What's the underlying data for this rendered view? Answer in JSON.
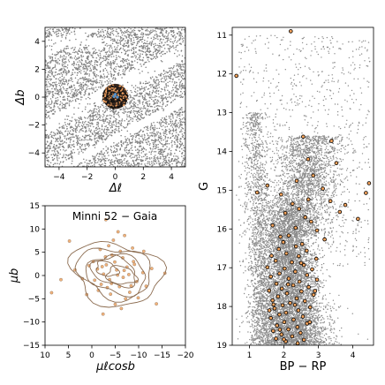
{
  "chart_data": [
    {
      "type": "scatter",
      "xlabel": "Δℓ",
      "ylabel": "Δb",
      "xlim": [
        -5,
        5
      ],
      "ylim": [
        -5,
        5
      ],
      "xticks": [
        -4,
        -2,
        0,
        2,
        4
      ],
      "yticks": [
        -4,
        -2,
        0,
        2,
        4
      ],
      "xtick_labels": [
        "−4",
        "−2",
        "0",
        "2",
        "4"
      ],
      "ytick_labels": [
        "−4",
        "−2",
        "0",
        "2",
        "4"
      ],
      "series": [
        {
          "role": "field",
          "color": "#808080",
          "description_shape": "dense uniform field of stars with diagonal gaps"
        },
        {
          "role": "members",
          "color": "#1a1a1a",
          "center": [
            0,
            0.05
          ],
          "radius": 0.9
        },
        {
          "role": "highlight",
          "color": "#4f8fcc",
          "points": [
            [
              0.0,
              0.2
            ],
            [
              0.15,
              0.0
            ],
            [
              -0.1,
              0.05
            ]
          ]
        }
      ]
    },
    {
      "type": "scatter",
      "title": "Minni 52  −  Gaia",
      "xlabel": "μℓcosb",
      "ylabel": "μb",
      "xlim": [
        10,
        -20
      ],
      "ylim": [
        -15,
        15
      ],
      "xticks": [
        10,
        5,
        0,
        -5,
        -10,
        -15,
        -20
      ],
      "yticks": [
        -15,
        -10,
        -5,
        0,
        5,
        10,
        15
      ],
      "xtick_labels": [
        "10",
        "5",
        "0",
        "−5",
        "−10",
        "−15",
        "−20"
      ],
      "ytick_labels": [
        "−15",
        "−10",
        "−5",
        "0",
        "5",
        "10",
        "15"
      ],
      "points": [
        [
          -5.3,
          1.2
        ],
        [
          -3.1,
          2.3
        ],
        [
          -8.9,
          3.0
        ],
        [
          -1.2,
          1.4
        ],
        [
          -6.7,
          -0.4
        ],
        [
          -4.3,
          4.4
        ],
        [
          -2.0,
          -1.9
        ],
        [
          -7.5,
          1.8
        ],
        [
          -5.9,
          -2.4
        ],
        [
          0.6,
          2.1
        ],
        [
          -3.8,
          -0.9
        ],
        [
          -9.6,
          -1.3
        ],
        [
          -4.9,
          2.9
        ],
        [
          -6.1,
          5.2
        ],
        [
          -2.5,
          0.3
        ],
        [
          -8.1,
          -3.6
        ],
        [
          -1.4,
          -3.2
        ],
        [
          -10.9,
          0.6
        ],
        [
          -3.6,
          6.4
        ],
        [
          -7.2,
          -5.0
        ],
        [
          -5.5,
          0.1
        ],
        [
          2.0,
          -0.7
        ],
        [
          -6.6,
          3.8
        ],
        [
          -4.0,
          -4.0
        ],
        [
          -9.1,
          2.4
        ],
        [
          -2.9,
          4.0
        ],
        [
          -11.6,
          -2.3
        ],
        [
          -0.6,
          -1.0
        ],
        [
          -5.0,
          -6.2
        ],
        [
          -7.9,
          0.2
        ],
        [
          -3.3,
          -2.6
        ],
        [
          -8.7,
          5.9
        ],
        [
          3.6,
          1.2
        ],
        [
          -12.8,
          1.5
        ],
        [
          -1.8,
          5.6
        ],
        [
          -6.3,
          -7.1
        ],
        [
          -4.6,
          7.6
        ],
        [
          -9.9,
          -4.8
        ],
        [
          1.1,
          -4.1
        ],
        [
          -7.0,
          8.6
        ],
        [
          4.8,
          7.4
        ],
        [
          -5.6,
          9.4
        ],
        [
          6.6,
          -0.9
        ],
        [
          -13.8,
          -6.1
        ],
        [
          -2.4,
          -8.3
        ],
        [
          8.6,
          -3.7
        ],
        [
          -15.6,
          0.5
        ],
        [
          -11.1,
          5.2
        ],
        [
          -3.0,
          12.0
        ],
        [
          -0.3,
          3.0
        ],
        [
          -6.9,
          1.1
        ],
        [
          -4.2,
          -1.7
        ],
        [
          -8.4,
          -2.2
        ],
        [
          -2.2,
          1.9
        ]
      ],
      "contours": [
        {
          "level": 1,
          "center": [
            -5.2,
            0.4
          ],
          "radii": [
            9.8,
            6.6
          ],
          "angle": 12
        },
        {
          "level": 2,
          "center": [
            -5.0,
            0.6
          ],
          "radii": [
            8.0,
            5.3
          ],
          "angle": 14
        },
        {
          "level": 3,
          "center": [
            -5.4,
            0.2
          ],
          "radii": [
            6.4,
            4.1
          ],
          "angle": 10
        },
        {
          "level": 4,
          "center": [
            -4.8,
            0.9
          ],
          "radii": [
            4.9,
            3.0
          ],
          "angle": 18
        },
        {
          "level": 5,
          "center": [
            -6.3,
            0.0
          ],
          "radii": [
            3.2,
            1.9
          ],
          "angle": 8
        },
        {
          "level": 6,
          "center": [
            -3.2,
            1.4
          ],
          "radii": [
            2.4,
            1.5
          ],
          "angle": 20
        }
      ],
      "point_color": "#f2b27a",
      "point_edge": "#8a7766",
      "contour_color": "#8b6b4f"
    },
    {
      "type": "scatter",
      "xlabel": "BP − RP",
      "ylabel": "G",
      "xlim": [
        0.5,
        4.6
      ],
      "ylim": [
        19,
        10.8
      ],
      "xticks": [
        1,
        2,
        3,
        4
      ],
      "yticks": [
        11,
        12,
        13,
        14,
        15,
        16,
        17,
        18,
        19
      ],
      "field_color": "#8c8c8c",
      "member_color": "#f6a45c",
      "member_edge": "#000000",
      "members": [
        [
          2.2,
          10.9
        ],
        [
          0.62,
          12.05
        ],
        [
          2.56,
          13.62
        ],
        [
          3.38,
          13.73
        ],
        [
          2.7,
          14.2
        ],
        [
          3.52,
          14.3
        ],
        [
          2.85,
          14.62
        ],
        [
          4.47,
          14.82
        ],
        [
          1.52,
          14.88
        ],
        [
          2.37,
          14.76
        ],
        [
          3.13,
          14.96
        ],
        [
          1.92,
          15.11
        ],
        [
          1.22,
          15.06
        ],
        [
          4.38,
          15.07
        ],
        [
          2.71,
          15.24
        ],
        [
          3.35,
          15.28
        ],
        [
          3.78,
          15.38
        ],
        [
          2.44,
          15.48
        ],
        [
          2.04,
          15.59
        ],
        [
          3.62,
          15.56
        ],
        [
          4.15,
          15.74
        ],
        [
          2.79,
          15.81
        ],
        [
          1.67,
          15.91
        ],
        [
          2.34,
          15.97
        ],
        [
          2.96,
          16.04
        ],
        [
          2.14,
          16.17
        ],
        [
          3.18,
          16.27
        ],
        [
          1.98,
          16.34
        ],
        [
          2.53,
          16.39
        ],
        [
          1.85,
          16.52
        ],
        [
          2.66,
          16.56
        ],
        [
          2.07,
          16.63
        ],
        [
          1.64,
          16.69
        ],
        [
          2.43,
          16.7
        ],
        [
          2.94,
          16.77
        ],
        [
          1.76,
          16.82
        ],
        [
          2.23,
          16.86
        ],
        [
          2.58,
          16.93
        ],
        [
          1.52,
          16.99
        ],
        [
          2.02,
          17.02
        ],
        [
          2.82,
          17.04
        ],
        [
          2.33,
          17.1
        ],
        [
          1.87,
          17.15
        ],
        [
          2.67,
          17.19
        ],
        [
          1.62,
          17.23
        ],
        [
          2.14,
          17.28
        ],
        [
          2.96,
          17.31
        ],
        [
          2.45,
          17.36
        ],
        [
          1.78,
          17.41
        ],
        [
          2.27,
          17.45
        ],
        [
          2.72,
          17.5
        ],
        [
          1.94,
          17.54
        ],
        [
          1.57,
          17.59
        ],
        [
          2.51,
          17.61
        ],
        [
          2.09,
          17.66
        ],
        [
          2.86,
          17.7
        ],
        [
          1.83,
          17.74
        ],
        [
          2.37,
          17.79
        ],
        [
          1.67,
          17.84
        ],
        [
          2.61,
          17.86
        ],
        [
          2.18,
          17.91
        ],
        [
          1.96,
          17.97
        ],
        [
          2.76,
          18.02
        ],
        [
          1.73,
          18.05
        ],
        [
          2.42,
          18.1
        ],
        [
          2.06,
          18.16
        ],
        [
          1.87,
          18.21
        ],
        [
          2.55,
          18.26
        ],
        [
          1.62,
          18.3
        ],
        [
          2.28,
          18.34
        ],
        [
          2.01,
          18.4
        ],
        [
          2.67,
          18.44
        ],
        [
          1.8,
          18.49
        ],
        [
          2.39,
          18.53
        ],
        [
          2.13,
          18.59
        ],
        [
          1.69,
          18.63
        ],
        [
          2.48,
          18.68
        ],
        [
          1.93,
          18.72
        ],
        [
          2.24,
          18.77
        ],
        [
          1.77,
          18.83
        ],
        [
          2.58,
          18.86
        ],
        [
          2.05,
          18.9
        ],
        [
          2.4,
          18.95
        ],
        [
          1.88,
          18.6
        ],
        [
          2.32,
          17.96
        ],
        [
          2.12,
          17.43
        ],
        [
          2.5,
          16.88
        ],
        [
          1.9,
          16.2
        ],
        [
          2.62,
          15.7
        ],
        [
          2.25,
          15.35
        ],
        [
          2.9,
          17.6
        ],
        [
          1.7,
          17.95
        ],
        [
          2.75,
          18.4
        ],
        [
          1.58,
          18.1
        ],
        [
          2.35,
          16.45
        ],
        [
          2.0,
          18.85
        ]
      ]
    }
  ]
}
